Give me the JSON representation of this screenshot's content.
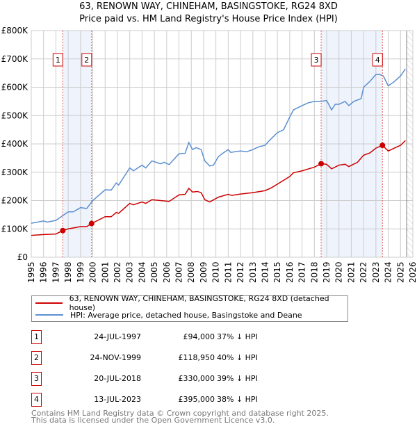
{
  "title": "63, RENOWN WAY, CHINEHAM, BASINGSTOKE, RG24 8XD",
  "subtitle": "Price paid vs. HM Land Registry's House Price Index (HPI)",
  "legend": {
    "property": "63, RENOWN WAY, CHINEHAM, BASINGSTOKE, RG24 8XD (detached house)",
    "hpi": "HPI: Average price, detached house, Basingstoke and Deane"
  },
  "colors": {
    "property": "#cc0000",
    "hpi": "#5b8fd0",
    "shade": "#eef3fc"
  },
  "sales": [
    {
      "id": "1",
      "date": "24-JUL-1997",
      "price": "£94,000",
      "hpi": "37% ↓ HPI",
      "x": 1997.56,
      "y": 94
    },
    {
      "id": "2",
      "date": "24-NOV-1999",
      "price": "£118,950",
      "hpi": "40% ↓ HPI",
      "x": 1999.9,
      "y": 118.95
    },
    {
      "id": "3",
      "date": "20-JUL-2018",
      "price": "£330,000",
      "hpi": "39% ↓ HPI",
      "x": 2018.55,
      "y": 330
    },
    {
      "id": "4",
      "date": "13-JUL-2023",
      "price": "£395,000",
      "hpi": "38% ↓ HPI",
      "x": 2023.53,
      "y": 395
    }
  ],
  "footer": {
    "line1": "Contains HM Land Registry data © Crown copyright and database right 2025.",
    "line2": "This data is licensed under the Open Government Licence v3.0."
  },
  "chart_data": {
    "type": "line",
    "xlim": [
      1995,
      2026
    ],
    "ylim": [
      0,
      800
    ],
    "yunit": "£K",
    "ytick_labels": [
      "£0",
      "£100K",
      "£200K",
      "£300K",
      "£400K",
      "£500K",
      "£600K",
      "£700K",
      "£800K"
    ],
    "xtick_labels": [
      "1995",
      "1996",
      "1997",
      "1998",
      "1999",
      "2000",
      "2001",
      "2002",
      "2003",
      "2004",
      "2005",
      "2006",
      "2007",
      "2008",
      "2009",
      "2010",
      "2011",
      "2012",
      "2013",
      "2014",
      "2015",
      "2016",
      "2017",
      "2018",
      "2019",
      "2020",
      "2021",
      "2022",
      "2023",
      "2024",
      "2025",
      "2026"
    ],
    "shaded_ranges": [
      [
        1997.56,
        1999.9
      ],
      [
        2018.55,
        2023.53
      ]
    ],
    "forecast_from": 2025.5,
    "series": [
      {
        "name": "property",
        "points": [
          [
            1995,
            77
          ],
          [
            1996,
            80
          ],
          [
            1997,
            82
          ],
          [
            1997.56,
            94
          ],
          [
            1998,
            100
          ],
          [
            1999,
            108
          ],
          [
            1999.5,
            108
          ],
          [
            1999.9,
            119
          ],
          [
            2001,
            143
          ],
          [
            2001.5,
            143
          ],
          [
            2001.9,
            158
          ],
          [
            2002.1,
            155
          ],
          [
            2003,
            190
          ],
          [
            2003.3,
            185
          ],
          [
            2004,
            195
          ],
          [
            2004.3,
            190
          ],
          [
            2004.8,
            203
          ],
          [
            2005.5,
            200
          ],
          [
            2006.2,
            197
          ],
          [
            2007,
            220
          ],
          [
            2007.5,
            222
          ],
          [
            2007.8,
            243
          ],
          [
            2008.1,
            230
          ],
          [
            2008.5,
            232
          ],
          [
            2008.8,
            228
          ],
          [
            2009.1,
            203
          ],
          [
            2009.5,
            195
          ],
          [
            2010.2,
            212
          ],
          [
            2011,
            222
          ],
          [
            2011.3,
            218
          ],
          [
            2012,
            223
          ],
          [
            2013,
            228
          ],
          [
            2014,
            235
          ],
          [
            2014.5,
            245
          ],
          [
            2015,
            258
          ],
          [
            2016,
            285
          ],
          [
            2016.3,
            298
          ],
          [
            2017,
            305
          ],
          [
            2018,
            318
          ],
          [
            2018.55,
            330
          ],
          [
            2019,
            328
          ],
          [
            2019.4,
            312
          ],
          [
            2020,
            325
          ],
          [
            2020.5,
            328
          ],
          [
            2020.8,
            320
          ],
          [
            2021.5,
            335
          ],
          [
            2022,
            360
          ],
          [
            2022.5,
            368
          ],
          [
            2023,
            385
          ],
          [
            2023.53,
            395
          ],
          [
            2024,
            375
          ],
          [
            2024.5,
            385
          ],
          [
            2025,
            395
          ],
          [
            2025.4,
            412
          ]
        ]
      },
      {
        "name": "hpi",
        "points": [
          [
            1995,
            120
          ],
          [
            1996,
            128
          ],
          [
            1996.3,
            124
          ],
          [
            1997,
            130
          ],
          [
            1997.5,
            145
          ],
          [
            1998,
            160
          ],
          [
            1998.4,
            160
          ],
          [
            1999,
            175
          ],
          [
            1999.5,
            172
          ],
          [
            2000,
            200
          ],
          [
            2001,
            238
          ],
          [
            2001.5,
            237
          ],
          [
            2001.9,
            262
          ],
          [
            2002.1,
            255
          ],
          [
            2003,
            315
          ],
          [
            2003.3,
            305
          ],
          [
            2004,
            325
          ],
          [
            2004.3,
            315
          ],
          [
            2004.8,
            340
          ],
          [
            2005.5,
            330
          ],
          [
            2005.8,
            335
          ],
          [
            2006.2,
            327
          ],
          [
            2007,
            365
          ],
          [
            2007.5,
            367
          ],
          [
            2007.8,
            405
          ],
          [
            2008.1,
            380
          ],
          [
            2008.4,
            387
          ],
          [
            2008.8,
            380
          ],
          [
            2009.1,
            340
          ],
          [
            2009.5,
            322
          ],
          [
            2009.8,
            325
          ],
          [
            2010.2,
            355
          ],
          [
            2010.5,
            365
          ],
          [
            2011,
            380
          ],
          [
            2011.2,
            370
          ],
          [
            2012,
            375
          ],
          [
            2012.5,
            372
          ],
          [
            2013,
            380
          ],
          [
            2013.5,
            390
          ],
          [
            2014,
            395
          ],
          [
            2014.3,
            410
          ],
          [
            2015,
            440
          ],
          [
            2015.5,
            450
          ],
          [
            2016,
            495
          ],
          [
            2016.3,
            520
          ],
          [
            2017,
            535
          ],
          [
            2017.5,
            545
          ],
          [
            2018,
            550
          ],
          [
            2018.5,
            550
          ],
          [
            2019,
            553
          ],
          [
            2019.4,
            520
          ],
          [
            2019.7,
            540
          ],
          [
            2020,
            540
          ],
          [
            2020.5,
            550
          ],
          [
            2020.8,
            535
          ],
          [
            2021.2,
            550
          ],
          [
            2021.8,
            560
          ],
          [
            2022,
            600
          ],
          [
            2022.5,
            620
          ],
          [
            2023,
            645
          ],
          [
            2023.3,
            645
          ],
          [
            2023.6,
            640
          ],
          [
            2024,
            605
          ],
          [
            2024.5,
            620
          ],
          [
            2025,
            640
          ],
          [
            2025.4,
            665
          ]
        ]
      }
    ]
  }
}
